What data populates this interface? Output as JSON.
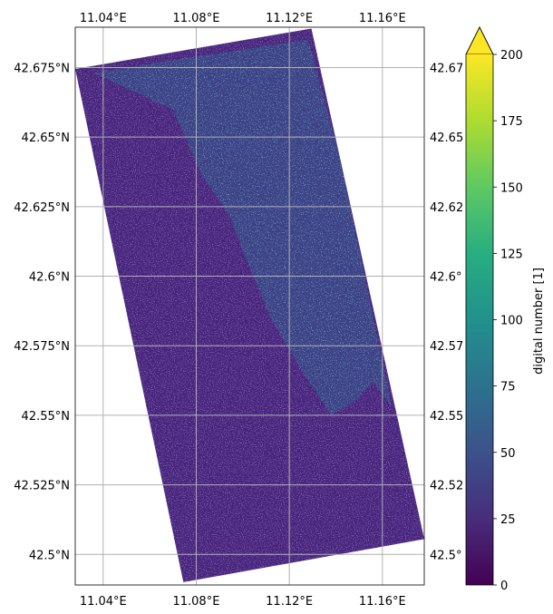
{
  "chart_data": {
    "type": "heatmap",
    "kind": "georeferenced raster (satellite image swath)",
    "x_axis": {
      "unit": "longitude",
      "range": [
        11.028,
        11.178
      ],
      "ticks": [
        11.04,
        11.08,
        11.12,
        11.16
      ],
      "tick_labels": [
        "11.04°E",
        "11.08°E",
        "11.12°E",
        "11.16°E"
      ],
      "label_position": "top-and-bottom"
    },
    "y_axis": {
      "unit": "latitude",
      "range": [
        42.489,
        42.6895
      ],
      "ticks": [
        42.5,
        42.525,
        42.55,
        42.575,
        42.6,
        42.625,
        42.65,
        42.675
      ],
      "tick_labels_left": [
        "42.5°N",
        "42.525°N",
        "42.55°N",
        "42.575°N",
        "42.6°N",
        "42.625°N",
        "42.65°N",
        "42.675°N"
      ],
      "tick_labels_right": [
        "42.5°",
        "42.52",
        "42.55",
        "42.57",
        "42.6°",
        "42.62",
        "42.65",
        "42.67"
      ]
    },
    "grid": true,
    "swath_corners": [
      {
        "lon": 11.028,
        "lat": 42.6745
      },
      {
        "lon": 11.1295,
        "lat": 42.689
      },
      {
        "lon": 11.178,
        "lat": 42.5055
      },
      {
        "lon": 11.0745,
        "lat": 42.49
      }
    ],
    "land_region_boundary": [
      [
        11.036,
        42.673
      ],
      [
        11.07,
        42.66
      ],
      [
        11.082,
        42.637
      ],
      [
        11.094,
        42.622
      ],
      [
        11.102,
        42.605
      ],
      [
        11.112,
        42.585
      ],
      [
        11.124,
        42.568
      ],
      [
        11.138,
        42.55
      ],
      [
        11.148,
        42.555
      ],
      [
        11.156,
        42.562
      ],
      [
        11.164,
        42.553
      ],
      [
        11.142,
        42.642
      ],
      [
        11.128,
        42.685
      ],
      [
        11.08,
        42.679
      ]
    ],
    "colorbar": {
      "colormap": "viridis",
      "min": 0,
      "max": 200,
      "extend": "max",
      "ticks": [
        0,
        25,
        50,
        75,
        100,
        125,
        150,
        175,
        200
      ],
      "label": "digital number [1]"
    },
    "colormap_stops": [
      "#440154",
      "#472d7b",
      "#3b528b",
      "#2c728e",
      "#21918c",
      "#28ae80",
      "#5ec962",
      "#addc30",
      "#fde725"
    ]
  },
  "colorbar_tick_labels": [
    "0",
    "25",
    "50",
    "75",
    "100",
    "125",
    "150",
    "175",
    "200"
  ],
  "colors": {
    "background": "#ffffff",
    "gridline": "#b0b0b0",
    "water_base": "#46227a",
    "land_base": "#3e3f86"
  }
}
